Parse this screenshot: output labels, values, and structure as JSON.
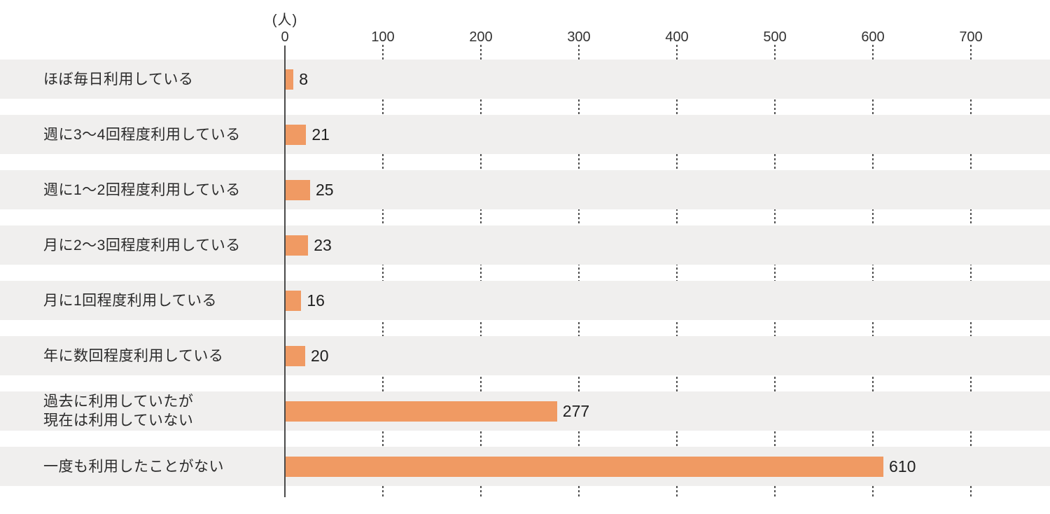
{
  "chart_data": {
    "type": "bar",
    "orientation": "horizontal",
    "title": "",
    "xlabel": "",
    "ylabel": "",
    "unit_label": "(人)",
    "categories": [
      "ほぼ毎日利用している",
      "週に3～4回程度利用している",
      "週に1～2回程度利用している",
      "月に2～3回程度利用している",
      "月に1回程度利用している",
      "年に数回程度利用している",
      "過去に利用していたが\n現在は利用していない",
      "一度も利用したことがない"
    ],
    "values": [
      8,
      21,
      25,
      23,
      16,
      20,
      277,
      610
    ],
    "value_labels": [
      "8",
      "21",
      "25",
      "23",
      "16",
      "20",
      "277",
      "610"
    ],
    "x_ticks": [
      "0",
      "100",
      "200",
      "300",
      "400",
      "500",
      "600",
      "700"
    ],
    "x_tick_values": [
      0,
      100,
      200,
      300,
      400,
      500,
      600,
      700
    ],
    "xlim": [
      0,
      780
    ],
    "grid": "vertical-dotted-between-rows",
    "legend": "none",
    "colors": {
      "bar": "#F09A63",
      "row_background": "#F0EFEE",
      "axis_line": "#4A4A4A",
      "gridline": "#4F4F4F",
      "text": "#2B2B2B",
      "background": "#FFFFFF"
    }
  }
}
